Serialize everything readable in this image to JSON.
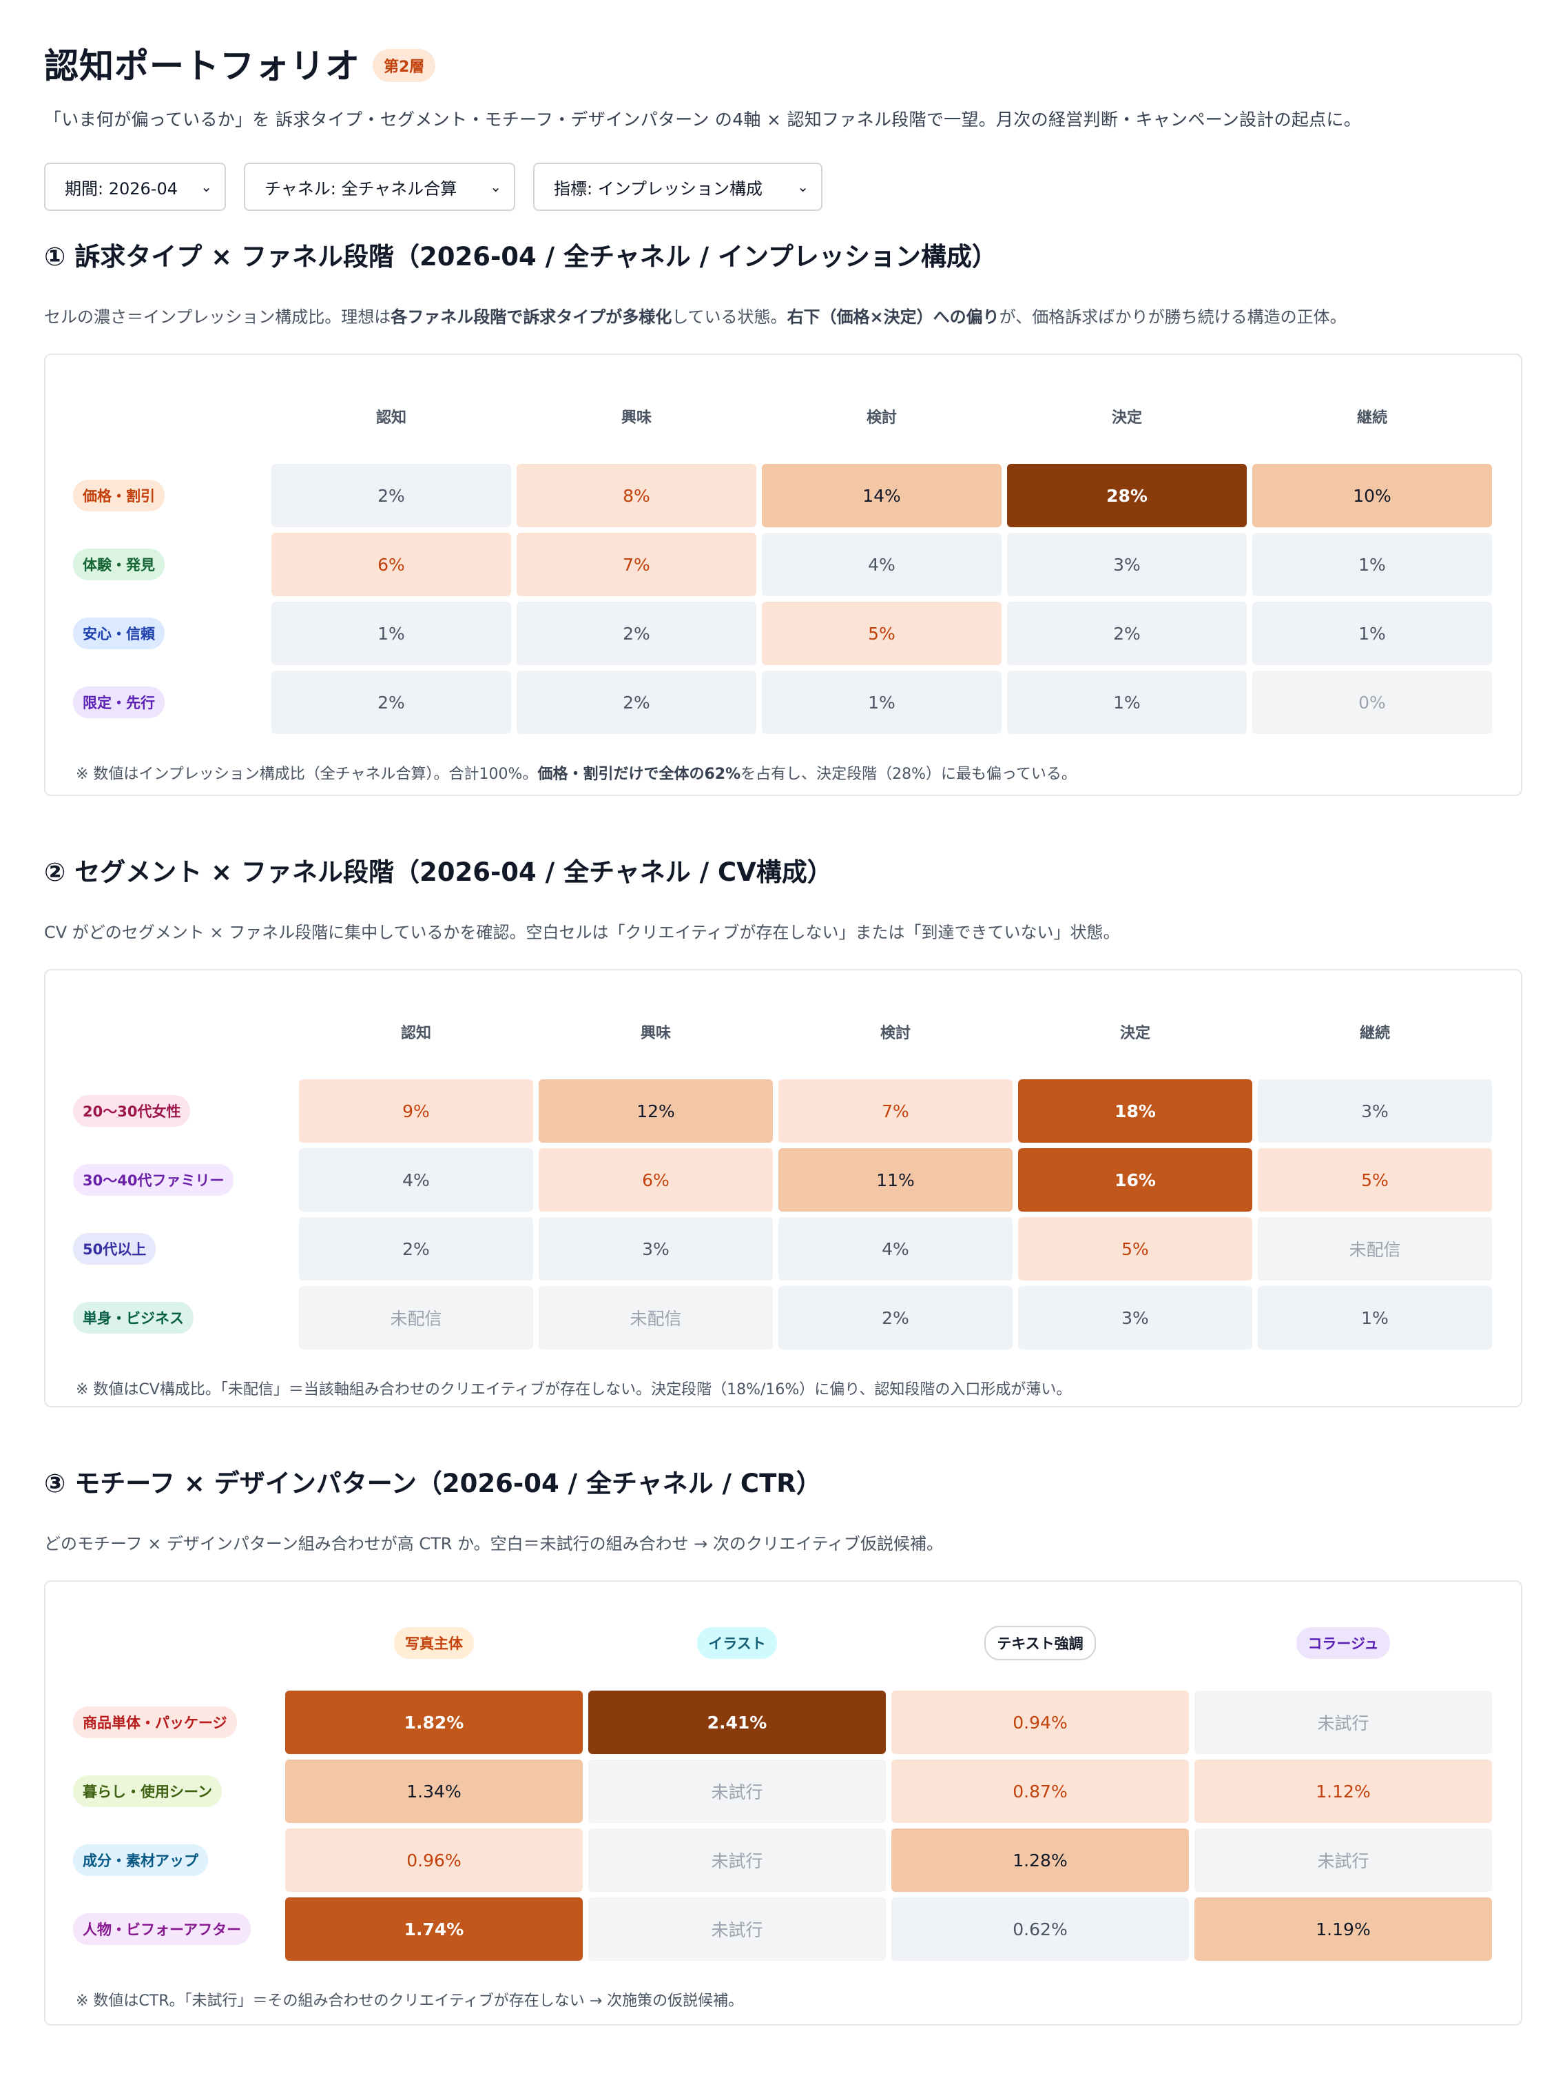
{
  "header": {
    "title": "認知ポートフォリオ",
    "tier_badge": "第2層",
    "subtitle": "「いま何が偏っているか」を 訴求タイプ・セグメント・モチーフ・デザインパターン の4軸 × 認知ファネル段階で一望。月次の経営判断・キャンペーン設計の起点に。"
  },
  "filters": {
    "period": "期間: 2026-04",
    "channel": "チャネル: 全チャネル合算",
    "metric": "指標: インプレッション構成"
  },
  "funnel_stages": [
    "認知",
    "興味",
    "検討",
    "決定",
    "継続"
  ],
  "section1": {
    "title": "① 訴求タイプ × ファネル段階（2026-04 / 全チャネル / インプレッション構成）",
    "desc_parts": [
      "セルの濃さ＝インプレッション構成比。理想は",
      "各ファネル段階で訴求タイプが多様化",
      "している状態。",
      "右下（価格×決定）への偏り",
      "が、価格訴求ばかりが勝ち続ける構造の正体。"
    ],
    "rows": [
      {
        "label": "価格・割引",
        "pill_bg": "#fde7d6",
        "pill_fg": "#c2410c",
        "cells": [
          {
            "v": "2%",
            "lv": 1
          },
          {
            "v": "8%",
            "lv": 2
          },
          {
            "v": "14%",
            "lv": 3
          },
          {
            "v": "28%",
            "lv": 5
          },
          {
            "v": "10%",
            "lv": 3
          }
        ]
      },
      {
        "label": "体験・発見",
        "pill_bg": "#dcf5e3",
        "pill_fg": "#166534",
        "cells": [
          {
            "v": "6%",
            "lv": 2
          },
          {
            "v": "7%",
            "lv": 2
          },
          {
            "v": "4%",
            "lv": 1
          },
          {
            "v": "3%",
            "lv": 1
          },
          {
            "v": "1%",
            "lv": 1
          }
        ]
      },
      {
        "label": "安心・信頼",
        "pill_bg": "#dbeafe",
        "pill_fg": "#1e40af",
        "cells": [
          {
            "v": "1%",
            "lv": 1
          },
          {
            "v": "2%",
            "lv": 1
          },
          {
            "v": "5%",
            "lv": 2
          },
          {
            "v": "2%",
            "lv": 1
          },
          {
            "v": "1%",
            "lv": 1
          }
        ]
      },
      {
        "label": "限定・先行",
        "pill_bg": "#ede5fb",
        "pill_fg": "#5b21b6",
        "cells": [
          {
            "v": "2%",
            "lv": 1
          },
          {
            "v": "2%",
            "lv": 1
          },
          {
            "v": "1%",
            "lv": 1
          },
          {
            "v": "1%",
            "lv": 1
          },
          {
            "v": "0%",
            "lv": 0
          }
        ]
      }
    ],
    "note_parts": [
      "※ 数値はインプレッション構成比（全チャネル合算）。合計100%。",
      "価格・割引だけで全体の62%",
      "を占有し、決定段階（28%）に最も偏っている。"
    ]
  },
  "section2": {
    "title": "② セグメント × ファネル段階（2026-04 / 全チャネル / CV構成）",
    "desc": "CV がどのセグメント × ファネル段階に集中しているかを確認。空白セルは「クリエイティブが存在しない」または「到達できていない」状態。",
    "rows": [
      {
        "label": "20〜30代女性",
        "pill_bg": "#fce4ec",
        "pill_fg": "#9d174d",
        "cells": [
          {
            "v": "9%",
            "lv": 2
          },
          {
            "v": "12%",
            "lv": 3
          },
          {
            "v": "7%",
            "lv": 2
          },
          {
            "v": "18%",
            "lv": 4
          },
          {
            "v": "3%",
            "lv": 1
          }
        ]
      },
      {
        "label": "30〜40代ファミリー",
        "pill_bg": "#f3e8ff",
        "pill_fg": "#6b21a8",
        "cells": [
          {
            "v": "4%",
            "lv": 1
          },
          {
            "v": "6%",
            "lv": 2
          },
          {
            "v": "11%",
            "lv": 3
          },
          {
            "v": "16%",
            "lv": 4
          },
          {
            "v": "5%",
            "lv": 2
          }
        ]
      },
      {
        "label": "50代以上",
        "pill_bg": "#e6e8fb",
        "pill_fg": "#3730a3",
        "cells": [
          {
            "v": "2%",
            "lv": 1
          },
          {
            "v": "3%",
            "lv": 1
          },
          {
            "v": "4%",
            "lv": 1
          },
          {
            "v": "5%",
            "lv": 2
          },
          {
            "v": "未配信",
            "lv": 0
          }
        ]
      },
      {
        "label": "単身・ビジネス",
        "pill_bg": "#dcf3ea",
        "pill_fg": "#065f46",
        "cells": [
          {
            "v": "未配信",
            "lv": 0
          },
          {
            "v": "未配信",
            "lv": 0
          },
          {
            "v": "2%",
            "lv": 1
          },
          {
            "v": "3%",
            "lv": 1
          },
          {
            "v": "1%",
            "lv": 1
          }
        ]
      }
    ],
    "note": "※ 数値はCV構成比。「未配信」＝当該軸組み合わせのクリエイティブが存在しない。決定段階（18%/16%）に偏り、認知段階の入口形成が薄い。"
  },
  "section3": {
    "title": "③ モチーフ × デザインパターン（2026-04 / 全チャネル / CTR）",
    "desc": "どのモチーフ × デザインパターン組み合わせが高 CTR か。空白＝未試行の組み合わせ → 次のクリエイティブ仮説候補。",
    "columns": [
      {
        "label": "写真主体",
        "bg": "#ffedd5",
        "fg": "#c2410c",
        "border": "none"
      },
      {
        "label": "イラスト",
        "bg": "#cffafe",
        "fg": "#155e75",
        "border": "none"
      },
      {
        "label": "テキスト強調",
        "bg": "#ffffff",
        "fg": "#111827",
        "border": "2px solid #d1d5db"
      },
      {
        "label": "コラージュ",
        "bg": "#ede5fb",
        "fg": "#5b21b6",
        "border": "none"
      }
    ],
    "rows": [
      {
        "label": "商品単体・パッケージ",
        "pill_bg": "#fde7e2",
        "pill_fg": "#b91c1c",
        "cells": [
          {
            "v": "1.82%",
            "lv": 4
          },
          {
            "v": "2.41%",
            "lv": 5
          },
          {
            "v": "0.94%",
            "lv": 2
          },
          {
            "v": "未試行",
            "lv": 0
          }
        ]
      },
      {
        "label": "暮らし・使用シーン",
        "pill_bg": "#ecf7d9",
        "pill_fg": "#3f6212",
        "cells": [
          {
            "v": "1.34%",
            "lv": 3
          },
          {
            "v": "未試行",
            "lv": 0
          },
          {
            "v": "0.87%",
            "lv": 2
          },
          {
            "v": "1.12%",
            "lv": 2
          }
        ]
      },
      {
        "label": "成分・素材アップ",
        "pill_bg": "#e0f2fe",
        "pill_fg": "#075985",
        "cells": [
          {
            "v": "0.96%",
            "lv": 2
          },
          {
            "v": "未試行",
            "lv": 0
          },
          {
            "v": "1.28%",
            "lv": 3
          },
          {
            "v": "未試行",
            "lv": 0
          }
        ]
      },
      {
        "label": "人物・ビフォーアフター",
        "pill_bg": "#f5e6fb",
        "pill_fg": "#86198f",
        "cells": [
          {
            "v": "1.74%",
            "lv": 4
          },
          {
            "v": "未試行",
            "lv": 0
          },
          {
            "v": "0.62%",
            "lv": 1
          },
          {
            "v": "1.19%",
            "lv": 3
          }
        ]
      }
    ],
    "note": "※ 数値はCTR。「未試行」＝その組み合わせのクリエイティブが存在しない → 次施策の仮説候補。"
  }
}
